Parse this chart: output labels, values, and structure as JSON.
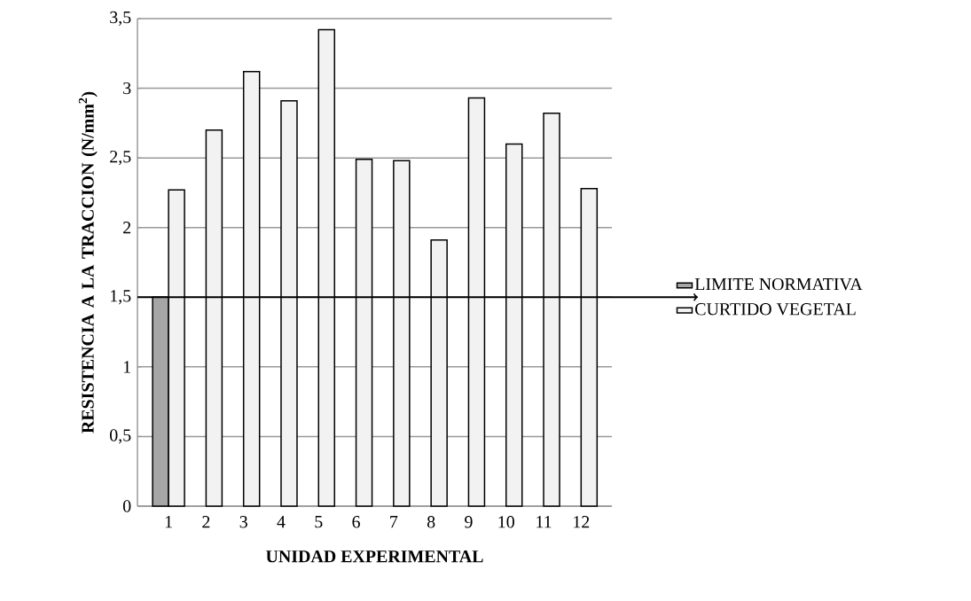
{
  "chart_data": {
    "type": "bar",
    "xlabel": "UNIDAD EXPERIMENTAL",
    "ylabel": "RESISTENCIA A LA TRACCION (N/mm$^{2}$)",
    "categories": [
      "1",
      "2",
      "3",
      "4",
      "5",
      "6",
      "7",
      "8",
      "9",
      "10",
      "11",
      "12"
    ],
    "series": [
      {
        "name": "LIMITE NORMATIVA",
        "color": "#a6a6a6",
        "values": [
          1.5,
          null,
          null,
          null,
          null,
          null,
          null,
          null,
          null,
          null,
          null,
          null
        ]
      },
      {
        "name": "CURTIDO VEGETAL",
        "color": "#f2f2f2",
        "values": [
          2.27,
          2.7,
          3.12,
          2.91,
          3.42,
          2.49,
          2.48,
          1.91,
          2.93,
          2.6,
          2.82,
          2.28
        ]
      }
    ],
    "ylim": [
      0,
      3.5
    ],
    "yticks": [
      0,
      {
        "value": 0.5,
        "label": "0,5"
      },
      1,
      {
        "value": 1.5,
        "label": "1,5"
      },
      2,
      {
        "value": 2.5,
        "label": "2,5"
      },
      3,
      {
        "value": 3.5,
        "label": "3,5"
      }
    ],
    "ref_lines": [
      {
        "axis": "y",
        "value": 1.5,
        "color": "#000000"
      }
    ],
    "grid": "y",
    "legend": "right"
  }
}
